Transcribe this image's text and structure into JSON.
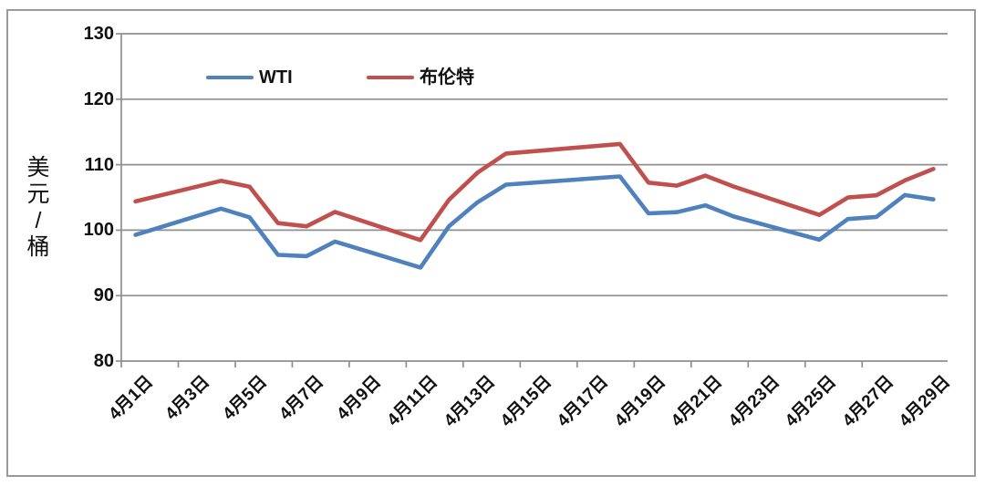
{
  "chart_data": {
    "type": "line",
    "title": "",
    "ylabel": "美元/桶",
    "xlabel": "",
    "ylim": [
      80,
      130
    ],
    "y_ticks": [
      80,
      90,
      100,
      110,
      120,
      130
    ],
    "grid": "horizontal",
    "legend_position": "top-inside",
    "x_tick_labels": [
      "4月1日",
      "4月3日",
      "4月5日",
      "4月7日",
      "4月9日",
      "4月11日",
      "4月13日",
      "4月15日",
      "4月17日",
      "4月19日",
      "4月21日",
      "4月23日",
      "4月25日",
      "4月27日",
      "4月29日"
    ],
    "categories": [
      "4月1日",
      "4月2日",
      "4月3日",
      "4月4日",
      "4月5日",
      "4月6日",
      "4月7日",
      "4月8日",
      "4月9日",
      "4月10日",
      "4月11日",
      "4月12日",
      "4月13日",
      "4月14日",
      "4月15日",
      "4月16日",
      "4月17日",
      "4月18日",
      "4月19日",
      "4月20日",
      "4月21日",
      "4月22日",
      "4月23日",
      "4月24日",
      "4月25日",
      "4月26日",
      "4月27日",
      "4月28日",
      "4月29日"
    ],
    "series": [
      {
        "name": "WTI",
        "color": "#4F81BD",
        "values": [
          99.27,
          null,
          null,
          103.28,
          101.96,
          96.23,
          96.03,
          98.26,
          null,
          null,
          94.29,
          100.6,
          104.25,
          106.95,
          null,
          null,
          null,
          108.21,
          102.56,
          102.75,
          103.79,
          102.07,
          null,
          null,
          98.54,
          101.7,
          102.02,
          105.36,
          104.69
        ]
      },
      {
        "name": "布伦特",
        "color": "#C0504D",
        "values": [
          104.39,
          null,
          null,
          107.53,
          106.64,
          101.07,
          100.58,
          102.78,
          null,
          null,
          98.48,
          104.64,
          108.78,
          111.7,
          null,
          null,
          null,
          113.16,
          107.25,
          106.8,
          108.33,
          106.65,
          null,
          null,
          102.32,
          104.99,
          105.32,
          107.59,
          109.34
        ]
      }
    ],
    "axis_color": "#8f8f8f",
    "gridline_color": "#8f8f8f",
    "border_color": "#9a9a9a"
  }
}
